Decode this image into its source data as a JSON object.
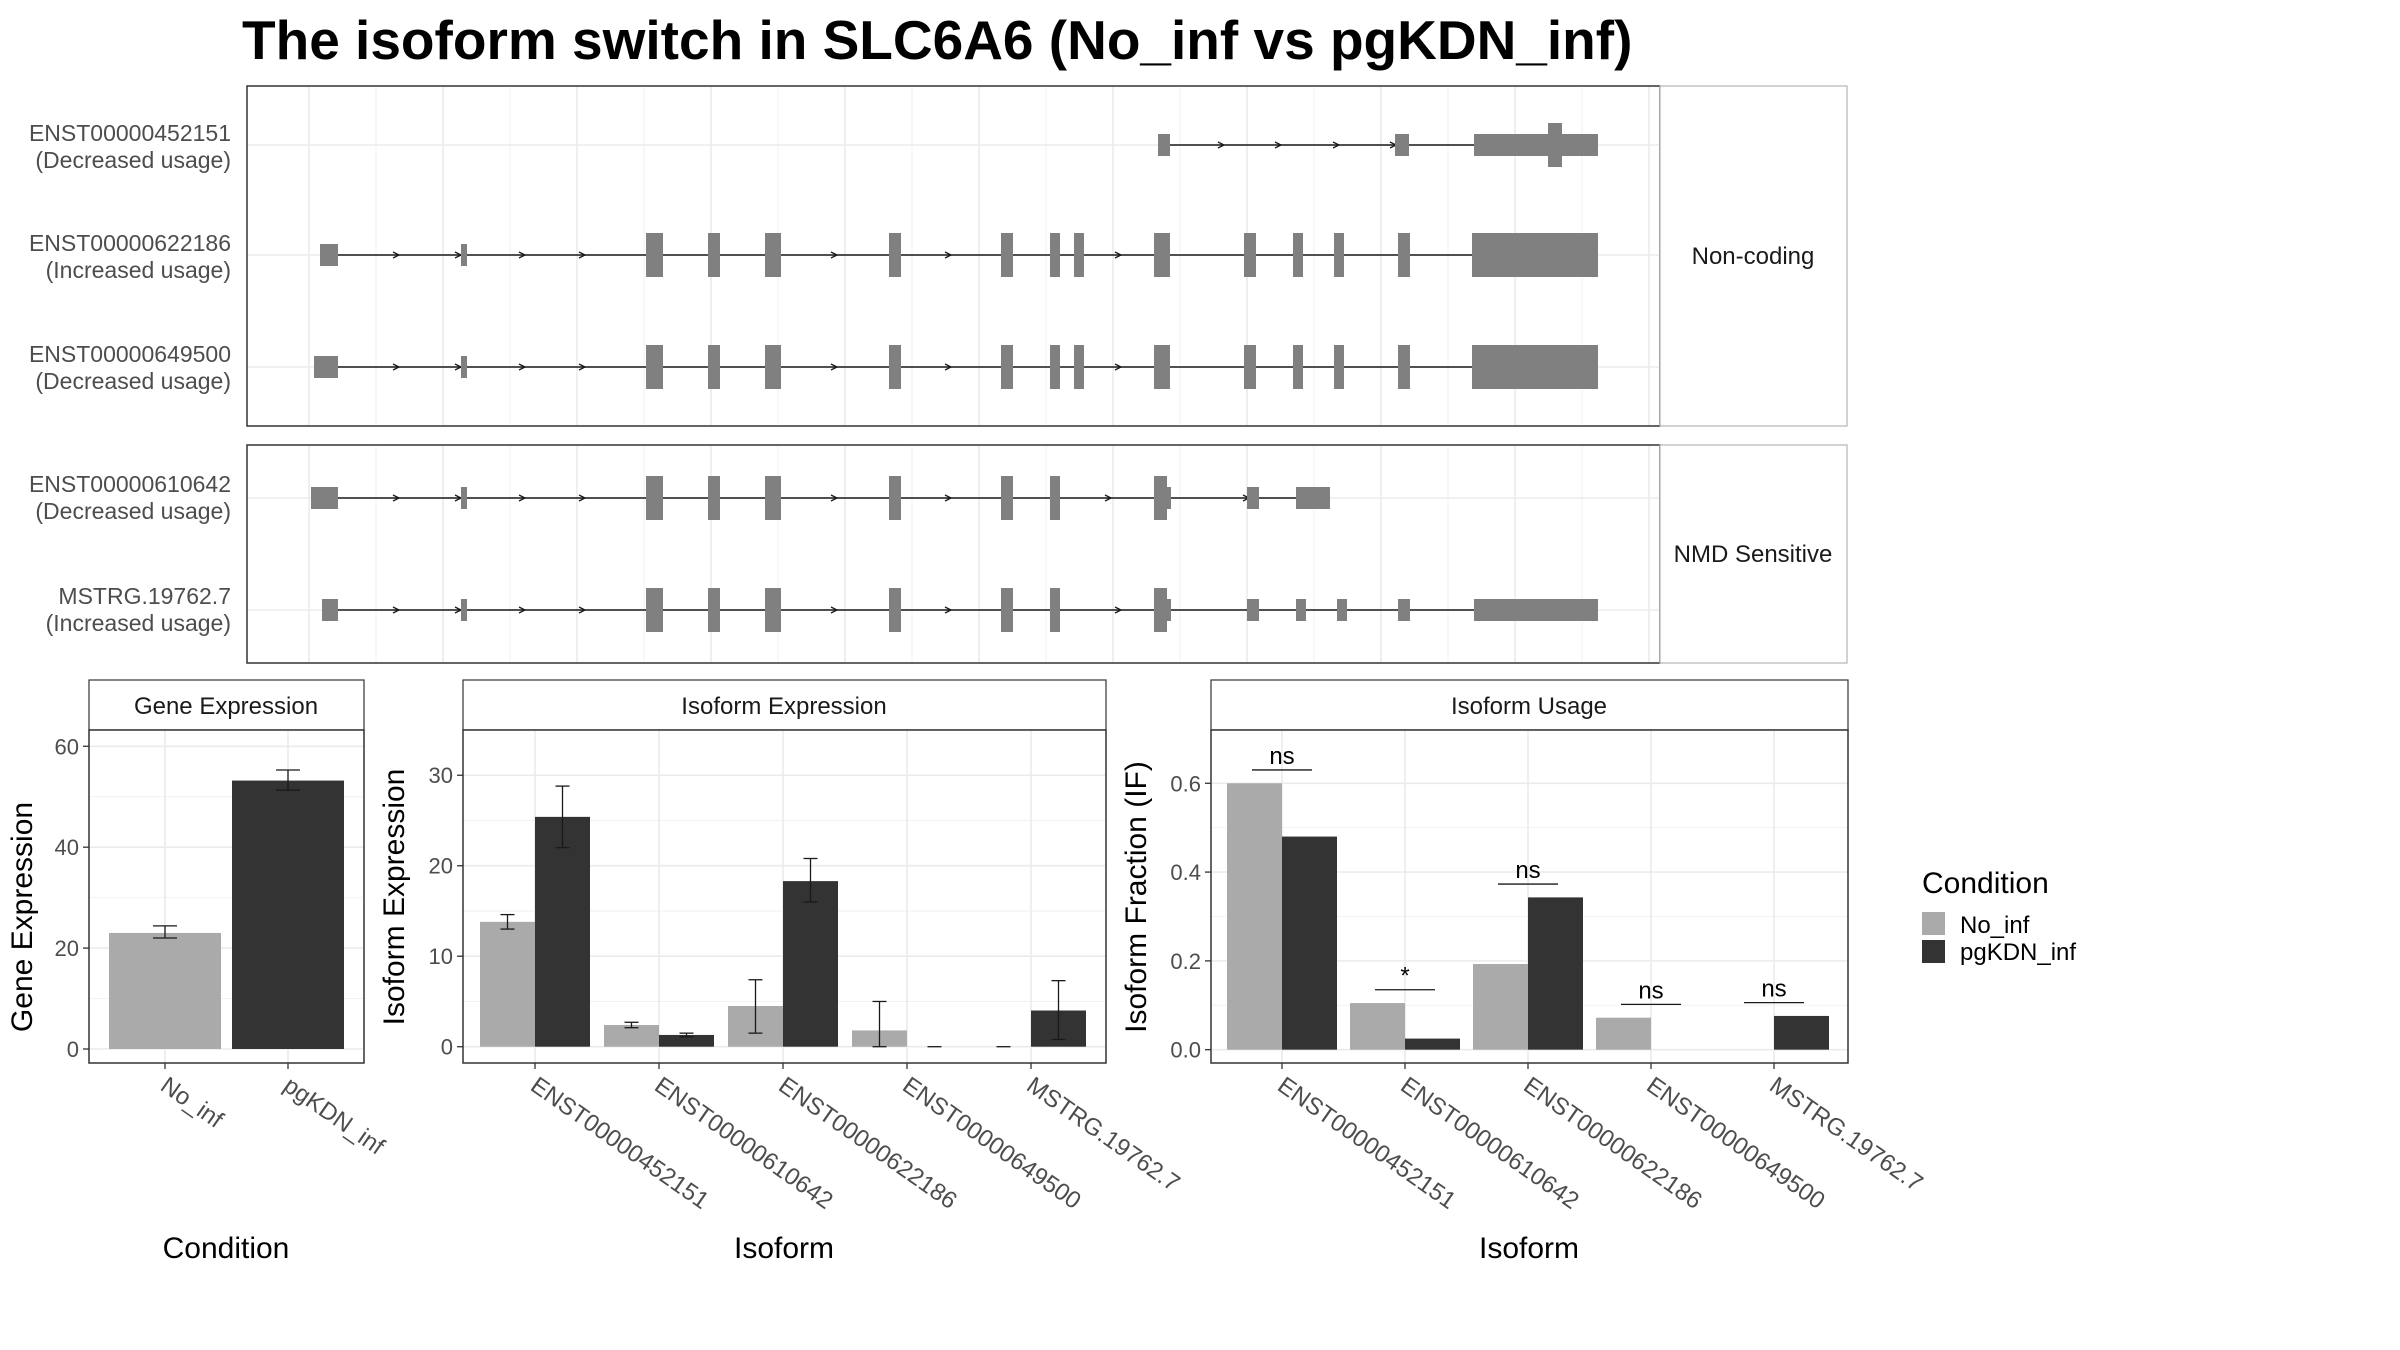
{
  "title": "The isoform switch in SLC6A6 (No_inf vs pgKDN_inf)",
  "colors": {
    "No_inf": "#aaaaaa",
    "pgKDN_inf": "#333333",
    "exon": "#808080",
    "grid": "#ebebeb",
    "panel_border": "#333333",
    "strip_bg": "#ffffff"
  },
  "structure": {
    "groups": [
      {
        "label": "Non-coding",
        "isoforms": [
          {
            "id": "ENST00000452151",
            "usage": "(Decreased usage)"
          },
          {
            "id": "ENST00000622186",
            "usage": "(Increased usage)"
          },
          {
            "id": "ENST00000649500",
            "usage": "(Decreased usage)"
          }
        ]
      },
      {
        "label": "NMD Sensitive",
        "isoforms": [
          {
            "id": "ENST00000610642",
            "usage": "(Decreased usage)"
          },
          {
            "id": "MSTRG.19762.7",
            "usage": "(Increased usage)"
          }
        ]
      }
    ]
  },
  "chart_data": [
    {
      "type": "bar",
      "title": "Gene Expression",
      "xlabel": "Condition",
      "ylabel": "Gene Expression",
      "categories": [
        "No_inf",
        "pgKDN_inf"
      ],
      "values": [
        23,
        53.2
      ],
      "errors": [
        [
          22.0,
          24.4
        ],
        [
          51.3,
          55.3
        ]
      ],
      "ylim": [
        0,
        66
      ],
      "yticks": [
        "0",
        "20",
        "40",
        "60"
      ],
      "yticks_values": [
        0,
        20,
        40,
        60
      ],
      "grid": true
    },
    {
      "type": "bar",
      "title": "Isoform Expression",
      "xlabel": "Isoform",
      "ylabel": "Isoform Expression",
      "categories": [
        "ENST00000452151",
        "ENST00000610642",
        "ENST00000622186",
        "ENST00000649500",
        "MSTRG.19762.7"
      ],
      "series": [
        {
          "name": "No_inf",
          "values": [
            13.8,
            2.4,
            4.5,
            1.8,
            0.0
          ],
          "errors": [
            [
              13.0,
              14.6
            ],
            [
              2.1,
              2.7
            ],
            [
              1.5,
              7.4
            ],
            [
              0.0,
              5.0
            ],
            [
              0.0,
              0.0
            ]
          ]
        },
        {
          "name": "pgKDN_inf",
          "values": [
            25.4,
            1.3,
            18.3,
            0.0,
            4.0
          ],
          "errors": [
            [
              22.0,
              28.8
            ],
            [
              1.1,
              1.5
            ],
            [
              16.0,
              20.8
            ],
            [
              0.0,
              0.0
            ],
            [
              0.8,
              7.3
            ]
          ]
        }
      ],
      "ylim": [
        -1.8,
        35
      ],
      "yticks": [
        "0",
        "10",
        "20",
        "30"
      ],
      "yticks_values": [
        0,
        10,
        20,
        30
      ],
      "grid": true
    },
    {
      "type": "bar",
      "title": "Isoform Usage",
      "xlabel": "Isoform",
      "ylabel": "Isoform Fraction (IF)",
      "categories": [
        "ENST00000452151",
        "ENST00000610642",
        "ENST00000622186",
        "ENST00000649500",
        "MSTRG.19762.7"
      ],
      "series": [
        {
          "name": "No_inf",
          "values": [
            0.6,
            0.105,
            0.193,
            0.072,
            0.0
          ]
        },
        {
          "name": "pgKDN_inf",
          "values": [
            0.48,
            0.025,
            0.343,
            0.0,
            0.076
          ]
        }
      ],
      "significance": [
        "ns",
        "*",
        "ns",
        "ns",
        "ns"
      ],
      "ylim": [
        -0.03,
        0.72
      ],
      "yticks": [
        "0.0",
        "0.2",
        "0.4",
        "0.6"
      ],
      "yticks_values": [
        0,
        0.2,
        0.4,
        0.6
      ],
      "grid": true
    }
  ],
  "legend": {
    "title": "Condition",
    "items": [
      {
        "label": "No_inf"
      },
      {
        "label": "pgKDN_inf"
      }
    ]
  }
}
